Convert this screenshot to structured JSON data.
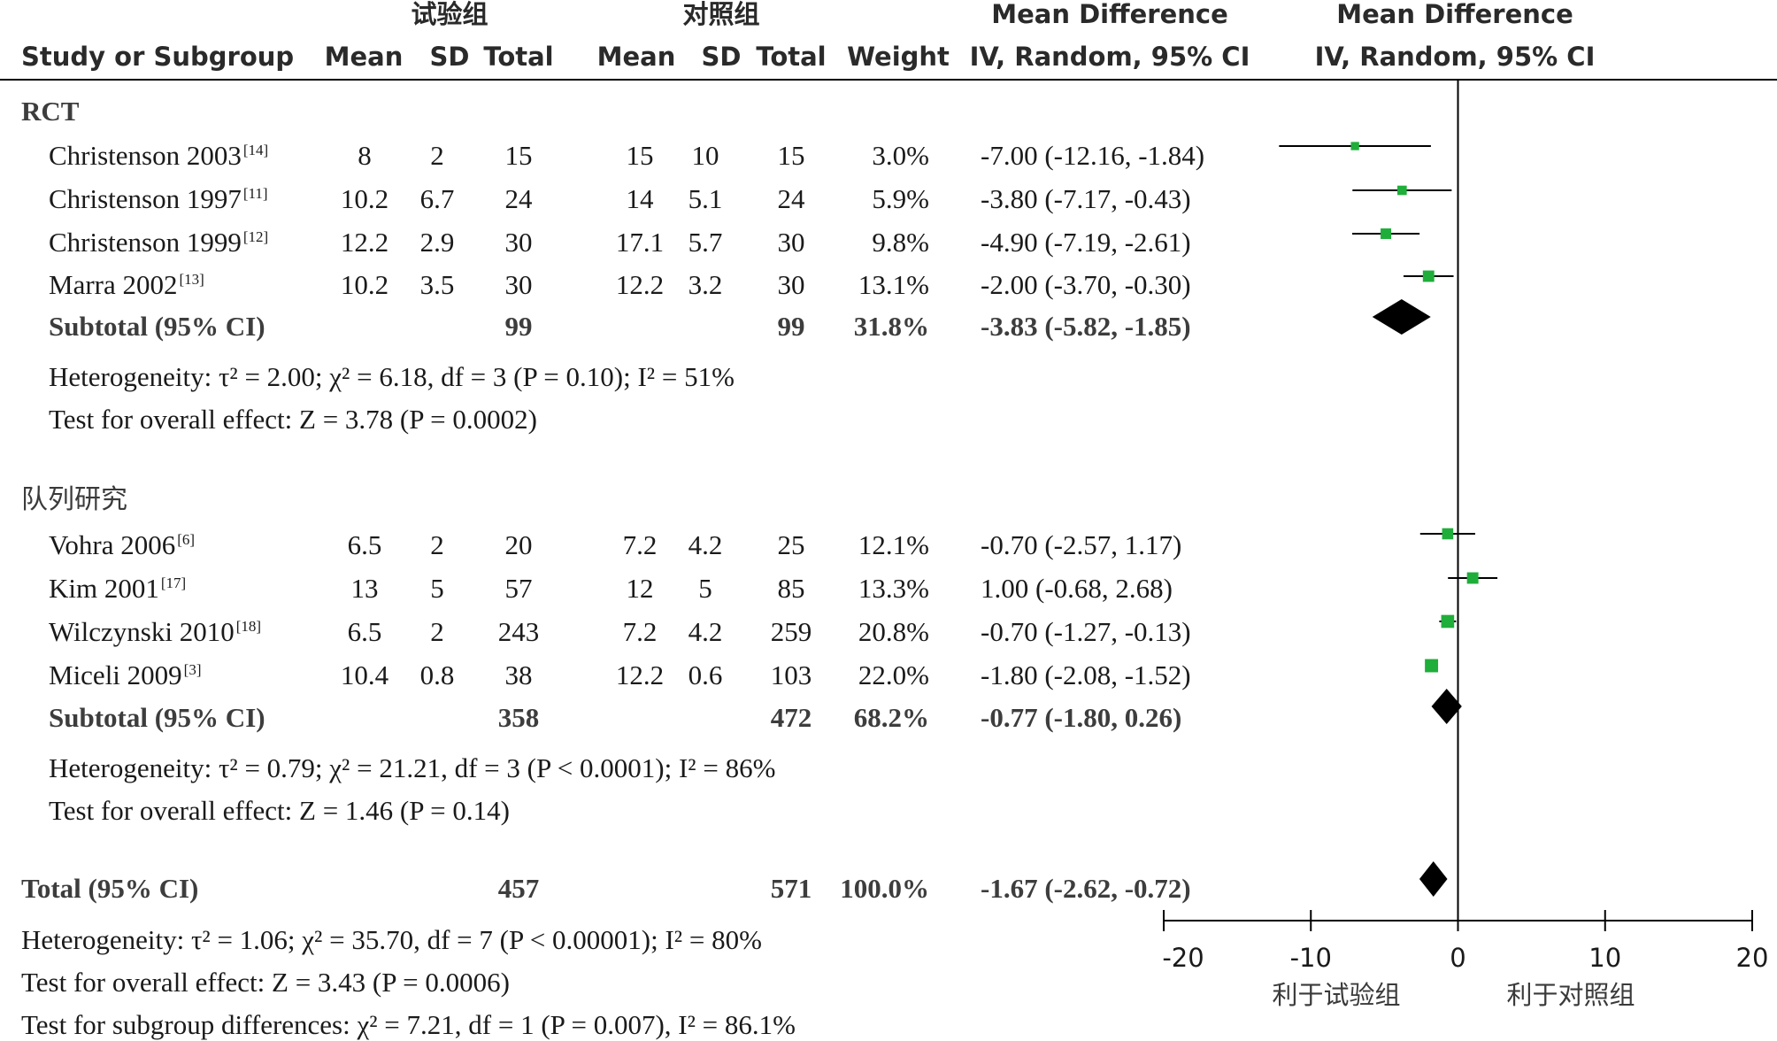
{
  "header": {
    "exp_group": "试验组",
    "ctrl_group": "对照组",
    "md_title": "Mean Difference",
    "md_title2": "Mean Difference",
    "study_col": "Study or Subgroup",
    "mean1": "Mean",
    "sd1": "SD",
    "total1": "Total",
    "mean2": "Mean",
    "sd2": "SD",
    "total2": "Total",
    "weight": "Weight",
    "ci_col": "IV, Random, 95% CI",
    "ci_col2": "IV, Random, 95% CI"
  },
  "groups": [
    {
      "name": "RCT",
      "studies": [
        {
          "study": "Christenson 2003",
          "ref": "[14]",
          "m1": "8",
          "sd1": "2",
          "n1": "15",
          "m2": "15",
          "sd2": "10",
          "n2": "15",
          "weight": "3.0%",
          "ci": "-7.00 (-12.16, -1.84)"
        },
        {
          "study": "Christenson 1997",
          "ref": "[11]",
          "m1": "10.2",
          "sd1": "6.7",
          "n1": "24",
          "m2": "14",
          "sd2": "5.1",
          "n2": "24",
          "weight": "5.9%",
          "ci": "-3.80 (-7.17, -0.43)"
        },
        {
          "study": "Christenson 1999",
          "ref": "[12]",
          "m1": "12.2",
          "sd1": "2.9",
          "n1": "30",
          "m2": "17.1",
          "sd2": "5.7",
          "n2": "30",
          "weight": "9.8%",
          "ci": "-4.90 (-7.19, -2.61)"
        },
        {
          "study": "Marra 2002",
          "ref": "[13]",
          "m1": "10.2",
          "sd1": "3.5",
          "n1": "30",
          "m2": "12.2",
          "sd2": "3.2",
          "n2": "30",
          "weight": "13.1%",
          "ci": "-2.00 (-3.70, -0.30)"
        }
      ],
      "subtotal": {
        "label": "Subtotal (95% CI)",
        "n1": "99",
        "n2": "99",
        "weight": "31.8%",
        "ci": "-3.83 (-5.82, -1.85)"
      },
      "heterogeneity": "Heterogeneity: τ² = 2.00; χ² = 6.18, df = 3 (P = 0.10); I² = 51%",
      "overall": "Test for overall effect: Z = 3.78 (P = 0.0002)"
    },
    {
      "name": "队列研究",
      "studies": [
        {
          "study": "Vohra 2006",
          "ref": "[6]",
          "m1": "6.5",
          "sd1": "2",
          "n1": "20",
          "m2": "7.2",
          "sd2": "4.2",
          "n2": "25",
          "weight": "12.1%",
          "ci": "-0.70 (-2.57, 1.17)"
        },
        {
          "study": "Kim 2001",
          "ref": "[17]",
          "m1": "13",
          "sd1": "5",
          "n1": "57",
          "m2": "12",
          "sd2": "5",
          "n2": "85",
          "weight": "13.3%",
          "ci": "1.00 (-0.68, 2.68)"
        },
        {
          "study": "Wilczynski 2010",
          "ref": "[18]",
          "m1": "6.5",
          "sd1": "2",
          "n1": "243",
          "m2": "7.2",
          "sd2": "4.2",
          "n2": "259",
          "weight": "20.8%",
          "ci": "-0.70 (-1.27, -0.13)"
        },
        {
          "study": "Miceli 2009",
          "ref": "[3]",
          "m1": "10.4",
          "sd1": "0.8",
          "n1": "38",
          "m2": "12.2",
          "sd2": "0.6",
          "n2": "103",
          "weight": "22.0%",
          "ci": "-1.80 (-2.08, -1.52)"
        }
      ],
      "subtotal": {
        "label": "Subtotal (95% CI)",
        "n1": "358",
        "n2": "472",
        "weight": "68.2%",
        "ci": "-0.77 (-1.80, 0.26)"
      },
      "heterogeneity": "Heterogeneity: τ² = 0.79; χ² = 21.21, df = 3 (P < 0.0001); I² = 86%",
      "overall": "Test for overall effect: Z = 1.46 (P = 0.14)"
    }
  ],
  "total": {
    "label": "Total (95% CI)",
    "n1": "457",
    "n2": "571",
    "weight": "100.0%",
    "ci": "-1.67 (-2.62, -0.72)",
    "heterogeneity": "Heterogeneity: τ² = 1.06; χ² = 35.70, df = 7 (P < 0.00001); I² = 80%",
    "overall": "Test for overall effect: Z = 3.43 (P = 0.0006)",
    "subgroup": "Test for subgroup differences: χ² = 7.21, df = 1 (P = 0.007), I² = 86.1%"
  },
  "axis": {
    "ticks": [
      "-20",
      "-10",
      "0",
      "10",
      "20"
    ],
    "favours_left": "利于试验组",
    "favours_right": "利于对照组"
  },
  "colors": {
    "marker": "#1fae3a",
    "diamond": "#000000",
    "line": "#000000",
    "header_text": "#2a2a2a"
  },
  "chart_data": {
    "type": "forest",
    "xlim": [
      -20,
      20
    ],
    "xticks": [
      -20,
      -10,
      0,
      10,
      20
    ],
    "studies": [
      {
        "name": "Christenson 2003",
        "md": -7.0,
        "lo": -12.16,
        "hi": -1.84,
        "weight": 3.0
      },
      {
        "name": "Christenson 1997",
        "md": -3.8,
        "lo": -7.17,
        "hi": -0.43,
        "weight": 5.9
      },
      {
        "name": "Christenson 1999",
        "md": -4.9,
        "lo": -7.19,
        "hi": -2.61,
        "weight": 9.8
      },
      {
        "name": "Marra 2002",
        "md": -2.0,
        "lo": -3.7,
        "hi": -0.3,
        "weight": 13.1
      },
      {
        "name": "Vohra 2006",
        "md": -0.7,
        "lo": -2.57,
        "hi": 1.17,
        "weight": 12.1
      },
      {
        "name": "Kim 2001",
        "md": 1.0,
        "lo": -0.68,
        "hi": 2.68,
        "weight": 13.3
      },
      {
        "name": "Wilczynski 2010",
        "md": -0.7,
        "lo": -1.27,
        "hi": -0.13,
        "weight": 20.8
      },
      {
        "name": "Miceli 2009",
        "md": -1.8,
        "lo": -2.08,
        "hi": -1.52,
        "weight": 22.0
      }
    ],
    "pooled": [
      {
        "name": "RCT subtotal",
        "md": -3.83,
        "lo": -5.82,
        "hi": -1.85
      },
      {
        "name": "队列研究 subtotal",
        "md": -0.77,
        "lo": -1.8,
        "hi": 0.26
      },
      {
        "name": "Total",
        "md": -1.67,
        "lo": -2.62,
        "hi": -0.72
      }
    ]
  }
}
